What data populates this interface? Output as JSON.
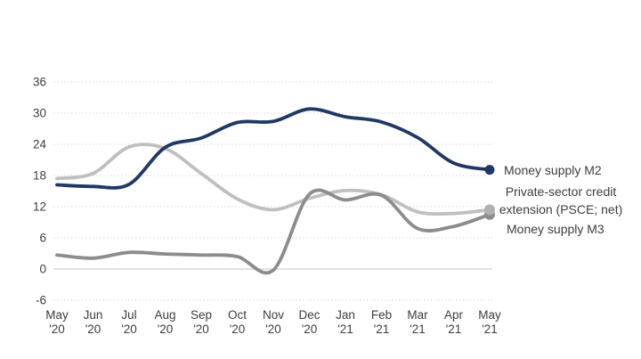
{
  "chart_data": {
    "type": "line",
    "title": "",
    "x_axis": {
      "months": [
        "May",
        "Jun",
        "Jul",
        "Aug",
        "Sep",
        "Oct",
        "Nov",
        "Dec",
        "Jan",
        "Feb",
        "Mar",
        "Apr",
        "May"
      ],
      "years": [
        "'20",
        "'20",
        "'20",
        "'20",
        "'20",
        "'20",
        "'20",
        "'20",
        "'21",
        "'21",
        "'21",
        "'21",
        "'21"
      ]
    },
    "y_axis": {
      "min": -6,
      "max": 36,
      "step": 6,
      "ticks": [
        36,
        30,
        24,
        18,
        12,
        6,
        0,
        -6
      ]
    },
    "series": [
      {
        "name": "Money supply M2",
        "color": "#1f3864",
        "marker_color": "#1f3864",
        "values": [
          16.2,
          15.9,
          16.3,
          23.4,
          25.2,
          28.2,
          28.4,
          30.8,
          29.3,
          28.3,
          25.3,
          20.4,
          19.1
        ]
      },
      {
        "name": "Private-sector credit extension (PSCE; net)",
        "color": "#bfbfbf",
        "marker_color": "#b0b0b0",
        "values": [
          17.4,
          18.4,
          23.5,
          23.2,
          18.4,
          13.5,
          11.4,
          13.6,
          15.1,
          14.3,
          11.0,
          10.7,
          11.4
        ]
      },
      {
        "name": "Money supply M3",
        "color": "#8c8c8c",
        "marker_color": "#8c8c8c",
        "values": [
          2.7,
          2.1,
          3.2,
          2.9,
          2.7,
          2.4,
          -0.2,
          14.4,
          13.3,
          14.2,
          7.8,
          8.2,
          10.5
        ]
      }
    ],
    "grid": "horizontal dotted light-gray lines, zero line solid",
    "legend_position": "right of line endpoints",
    "end_markers": "filled circle on last point of each series"
  },
  "legend": {
    "m2": "Money supply M2",
    "psce_line1": "Private-sector credit",
    "psce_line2": "extension (PSCE; net)",
    "m3": "Money supply M3"
  },
  "colors": {
    "gridline": "#d9d9d9",
    "zero_line": "#c6c6c6",
    "axis_text": "#3d3d3d",
    "background": "#ffffff"
  }
}
